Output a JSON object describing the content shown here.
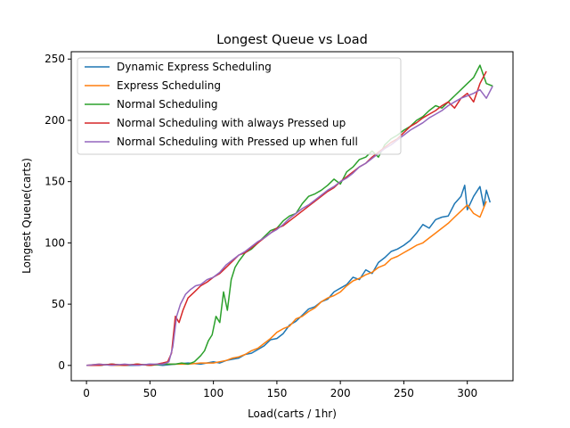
{
  "chart_data": {
    "type": "line",
    "title": "Longest Queue vs Load",
    "xlabel": "Load(carts / 1hr)",
    "ylabel": "Longest Queue(carts)",
    "xlim": [
      -12,
      336
    ],
    "ylim": [
      -12.5,
      256
    ],
    "xticks": [
      0,
      50,
      100,
      150,
      200,
      250,
      300
    ],
    "yticks": [
      0,
      50,
      100,
      150,
      200,
      250
    ],
    "grid": false,
    "legend_position": "top-left",
    "series": [
      {
        "name": "Dynamic Express Scheduling",
        "color": "#1f77b4",
        "x": [
          0,
          10,
          20,
          30,
          40,
          50,
          60,
          70,
          80,
          90,
          100,
          105,
          110,
          115,
          120,
          125,
          130,
          135,
          140,
          145,
          150,
          155,
          160,
          165,
          170,
          175,
          180,
          185,
          190,
          195,
          200,
          205,
          210,
          215,
          220,
          225,
          230,
          235,
          240,
          245,
          250,
          255,
          260,
          265,
          270,
          275,
          280,
          285,
          290,
          295,
          298,
          300,
          305,
          310,
          313,
          315,
          318
        ],
        "y": [
          0,
          0,
          1,
          0,
          0,
          1,
          0,
          1,
          2,
          1,
          3,
          2,
          4,
          5,
          6,
          9,
          10,
          13,
          16,
          21,
          22,
          26,
          33,
          36,
          41,
          46,
          48,
          52,
          54,
          60,
          63,
          66,
          72,
          70,
          78,
          75,
          84,
          88,
          93,
          95,
          98,
          102,
          108,
          115,
          112,
          119,
          121,
          122,
          132,
          138,
          147,
          127,
          138,
          146,
          130,
          143,
          133
        ]
      },
      {
        "name": "Express Scheduling",
        "color": "#ff7f0e",
        "x": [
          0,
          10,
          20,
          30,
          40,
          50,
          60,
          70,
          80,
          90,
          100,
          105,
          110,
          115,
          120,
          125,
          130,
          135,
          140,
          145,
          150,
          155,
          160,
          165,
          170,
          175,
          180,
          185,
          190,
          195,
          200,
          205,
          210,
          215,
          220,
          225,
          230,
          235,
          240,
          245,
          250,
          255,
          260,
          265,
          270,
          275,
          280,
          285,
          290,
          295,
          300,
          305,
          310,
          315
        ],
        "y": [
          0,
          1,
          0,
          0,
          1,
          0,
          1,
          1,
          1,
          2,
          2,
          3,
          4,
          6,
          7,
          9,
          12,
          14,
          18,
          22,
          27,
          30,
          32,
          38,
          40,
          44,
          47,
          52,
          55,
          57,
          60,
          65,
          69,
          71,
          74,
          76,
          80,
          82,
          87,
          89,
          92,
          95,
          98,
          100,
          104,
          108,
          112,
          116,
          121,
          126,
          131,
          124,
          121,
          134
        ]
      },
      {
        "name": "Normal Scheduling",
        "color": "#2ca02c",
        "x": [
          0,
          10,
          20,
          30,
          40,
          50,
          60,
          70,
          75,
          80,
          85,
          90,
          93,
          96,
          99,
          102,
          105,
          108,
          111,
          114,
          117,
          120,
          125,
          130,
          135,
          140,
          145,
          150,
          155,
          160,
          165,
          170,
          175,
          180,
          185,
          190,
          195,
          200,
          205,
          210,
          215,
          220,
          225,
          230,
          235,
          240,
          245,
          250,
          255,
          260,
          265,
          270,
          275,
          280,
          285,
          290,
          295,
          300,
          305,
          310,
          315,
          320
        ],
        "y": [
          0,
          0,
          1,
          0,
          1,
          0,
          1,
          1,
          2,
          1,
          3,
          8,
          12,
          20,
          25,
          40,
          35,
          60,
          45,
          70,
          80,
          85,
          92,
          95,
          100,
          105,
          110,
          112,
          118,
          122,
          124,
          132,
          138,
          140,
          143,
          147,
          152,
          148,
          158,
          162,
          168,
          170,
          175,
          170,
          180,
          185,
          188,
          192,
          195,
          200,
          203,
          208,
          212,
          210,
          215,
          220,
          225,
          230,
          235,
          245,
          230,
          228
        ]
      },
      {
        "name": "Normal Scheduling with always Pressed up",
        "color": "#d62728",
        "x": [
          0,
          10,
          20,
          30,
          40,
          50,
          60,
          64,
          67,
          70,
          73,
          76,
          80,
          85,
          90,
          95,
          100,
          105,
          110,
          115,
          120,
          125,
          130,
          135,
          140,
          145,
          150,
          155,
          160,
          165,
          170,
          175,
          180,
          185,
          190,
          195,
          200,
          205,
          210,
          215,
          220,
          225,
          230,
          235,
          240,
          245,
          250,
          255,
          260,
          265,
          270,
          275,
          280,
          285,
          290,
          295,
          300,
          305,
          310,
          315
        ],
        "y": [
          0,
          0,
          1,
          0,
          1,
          0,
          2,
          3,
          10,
          40,
          35,
          45,
          55,
          60,
          65,
          68,
          72,
          75,
          80,
          85,
          90,
          92,
          96,
          100,
          104,
          108,
          112,
          114,
          118,
          122,
          126,
          130,
          134,
          138,
          142,
          145,
          150,
          154,
          158,
          162,
          165,
          170,
          174,
          178,
          182,
          185,
          190,
          195,
          198,
          202,
          205,
          208,
          212,
          215,
          210,
          218,
          222,
          215,
          230,
          240
        ]
      },
      {
        "name": "Normal Scheduling with Pressed up when full",
        "color": "#9467bd",
        "x": [
          0,
          10,
          20,
          30,
          40,
          50,
          60,
          63,
          65,
          68,
          71,
          74,
          78,
          82,
          86,
          90,
          95,
          100,
          105,
          110,
          115,
          120,
          125,
          130,
          135,
          140,
          145,
          150,
          155,
          160,
          165,
          170,
          175,
          180,
          185,
          190,
          195,
          200,
          205,
          210,
          215,
          220,
          225,
          230,
          235,
          240,
          245,
          250,
          255,
          260,
          265,
          270,
          275,
          280,
          285,
          290,
          295,
          300,
          305,
          310,
          315,
          320
        ],
        "y": [
          0,
          1,
          0,
          1,
          0,
          1,
          1,
          2,
          3,
          15,
          40,
          50,
          58,
          62,
          65,
          66,
          70,
          72,
          76,
          82,
          86,
          90,
          93,
          97,
          101,
          104,
          108,
          111,
          115,
          120,
          124,
          128,
          131,
          135,
          139,
          143,
          146,
          150,
          153,
          157,
          162,
          165,
          169,
          173,
          177,
          180,
          184,
          188,
          192,
          195,
          198,
          202,
          205,
          208,
          212,
          215,
          218,
          220,
          222,
          225,
          218,
          228
        ]
      }
    ]
  }
}
